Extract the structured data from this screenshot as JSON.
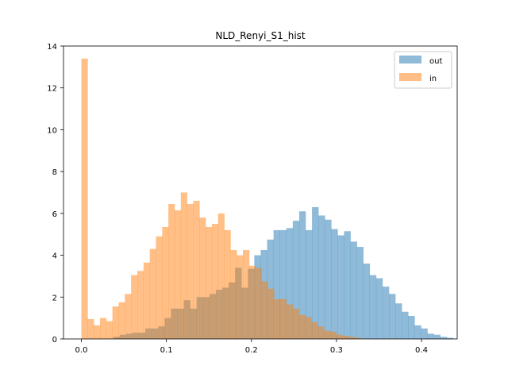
{
  "chart_data": {
    "type": "histogram",
    "title": "NLD_Renyi_S1_hist",
    "xlabel": "",
    "ylabel": "",
    "xlim": [
      -0.021,
      0.442
    ],
    "ylim": [
      0,
      14
    ],
    "x_ticks": [
      0.0,
      0.1,
      0.2,
      0.3,
      0.4
    ],
    "x_tick_labels": [
      "0.0",
      "0.1",
      "0.2",
      "0.3",
      "0.4"
    ],
    "y_ticks": [
      0,
      2,
      4,
      6,
      8,
      10,
      12,
      14
    ],
    "y_tick_labels": [
      "0",
      "2",
      "4",
      "6",
      "8",
      "10",
      "12",
      "14"
    ],
    "grid": false,
    "legend_position": "top-right",
    "series": [
      {
        "name": "out",
        "color": "#1f77b4",
        "opacity": 0.5,
        "bin_start": 0.0375,
        "bin_width": 0.00754,
        "values": [
          0.1,
          0.2,
          0.25,
          0.3,
          0.3,
          0.5,
          0.5,
          0.6,
          1.0,
          1.45,
          1.45,
          1.85,
          1.45,
          2.0,
          2.0,
          2.15,
          2.35,
          2.45,
          2.7,
          3.4,
          2.45,
          3.35,
          4.0,
          4.25,
          4.75,
          5.2,
          5.2,
          5.3,
          5.65,
          6.1,
          5.2,
          6.3,
          5.9,
          5.7,
          5.25,
          4.95,
          5.15,
          4.65,
          4.4,
          3.6,
          3.05,
          2.9,
          2.5,
          2.15,
          1.7,
          1.3,
          1.1,
          0.65,
          0.5,
          0.25,
          0.2,
          0.1,
          0.05
        ]
      },
      {
        "name": "in",
        "color": "#ff7f0e",
        "opacity": 0.5,
        "bin_start": 0.0,
        "bin_width": 0.00731,
        "values": [
          13.4,
          0.95,
          0.65,
          1.0,
          0.85,
          1.55,
          1.75,
          2.15,
          3.05,
          3.25,
          3.65,
          4.3,
          4.9,
          5.35,
          6.45,
          6.15,
          7.0,
          6.45,
          6.6,
          5.8,
          5.35,
          5.5,
          6.0,
          5.2,
          4.25,
          4.0,
          4.25,
          3.5,
          3.4,
          2.75,
          2.4,
          1.9,
          1.9,
          1.65,
          1.45,
          1.15,
          1.05,
          0.8,
          0.6,
          0.4,
          0.35,
          0.2,
          0.15,
          0.1,
          0.05
        ]
      }
    ]
  }
}
